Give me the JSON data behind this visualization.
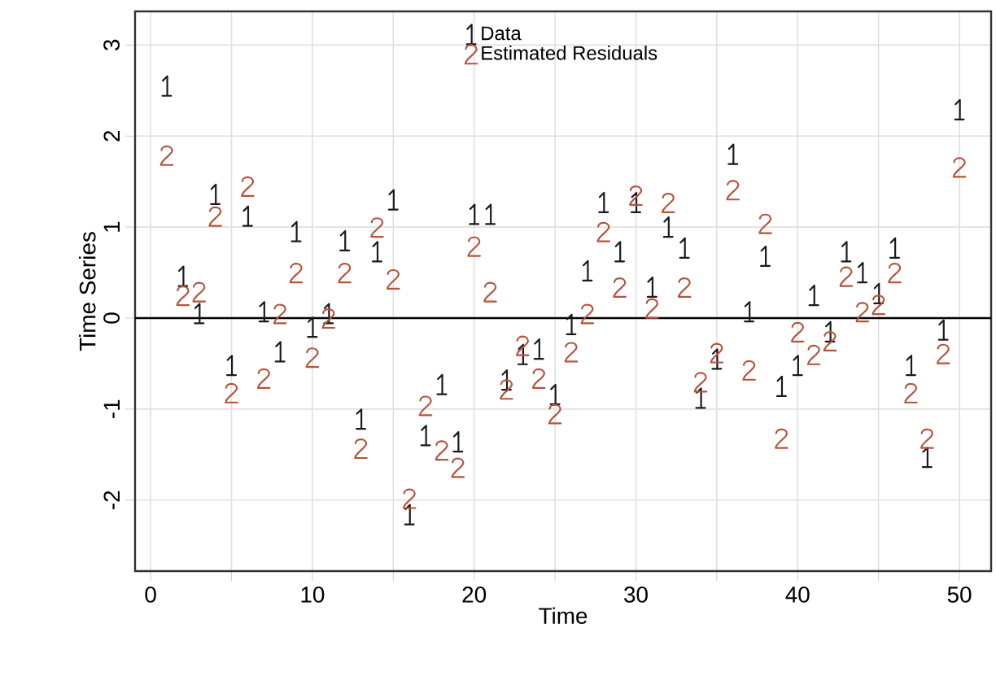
{
  "chart_data": {
    "type": "scatter",
    "xlabel": "Time",
    "ylabel": "Time Series",
    "x": [
      1,
      2,
      3,
      4,
      5,
      6,
      7,
      8,
      9,
      10,
      11,
      12,
      13,
      14,
      15,
      16,
      17,
      18,
      19,
      20,
      21,
      22,
      23,
      24,
      25,
      26,
      27,
      28,
      29,
      30,
      31,
      32,
      33,
      34,
      35,
      36,
      37,
      38,
      39,
      40,
      41,
      42,
      43,
      44,
      45,
      46,
      47,
      48,
      49,
      50
    ],
    "series": [
      {
        "name": "Data",
        "color": "#1a1a1a",
        "values": [
          2.55,
          0.46,
          0.05,
          1.36,
          -0.52,
          1.12,
          0.07,
          -0.37,
          0.95,
          -0.1,
          0.05,
          0.85,
          -1.11,
          0.73,
          1.3,
          -2.16,
          -1.29,
          -0.73,
          -1.36,
          1.14,
          1.14,
          -0.68,
          -0.4,
          -0.34,
          -0.84,
          -0.07,
          0.52,
          1.27,
          0.73,
          1.27,
          0.34,
          1.0,
          0.77,
          -0.88,
          -0.45,
          1.8,
          0.07,
          0.68,
          -0.75,
          -0.52,
          0.25,
          -0.15,
          0.73,
          0.5,
          0.27,
          0.77,
          -0.52,
          -1.53,
          -0.13,
          2.29
        ]
      },
      {
        "name": "Estimated Residuals",
        "color": "#b5533c",
        "values": [
          1.79,
          0.25,
          0.29,
          1.12,
          -0.82,
          1.45,
          -0.66,
          0.05,
          0.5,
          -0.43,
          0.0,
          0.5,
          -1.43,
          1.0,
          0.43,
          -1.98,
          -0.96,
          -1.45,
          -1.64,
          0.79,
          0.29,
          -0.78,
          -0.3,
          -0.66,
          -1.05,
          -0.37,
          0.05,
          0.95,
          0.34,
          1.35,
          0.11,
          1.27,
          0.34,
          -0.7,
          -0.38,
          1.41,
          -0.57,
          1.04,
          -1.32,
          -0.15,
          -0.4,
          -0.25,
          0.46,
          0.07,
          0.15,
          0.5,
          -0.82,
          -1.32,
          -0.39,
          1.66
        ]
      }
    ],
    "xlim": [
      -0.96,
      51.96
    ],
    "ylim": [
      -2.78,
      3.37
    ],
    "xticks": [
      0,
      {
        "value": 5,
        "label": null
      },
      10,
      {
        "value": 15,
        "label": null
      },
      20,
      {
        "value": 25,
        "label": null
      },
      30,
      {
        "value": 35,
        "label": null
      },
      40,
      {
        "value": 45,
        "label": null
      },
      50
    ],
    "yticks": [
      -2,
      -1,
      0,
      1,
      2,
      3
    ],
    "grid": true,
    "legend": "top",
    "ref_lines": [
      {
        "axis": "y",
        "value": 0,
        "color": "#000000"
      }
    ]
  }
}
